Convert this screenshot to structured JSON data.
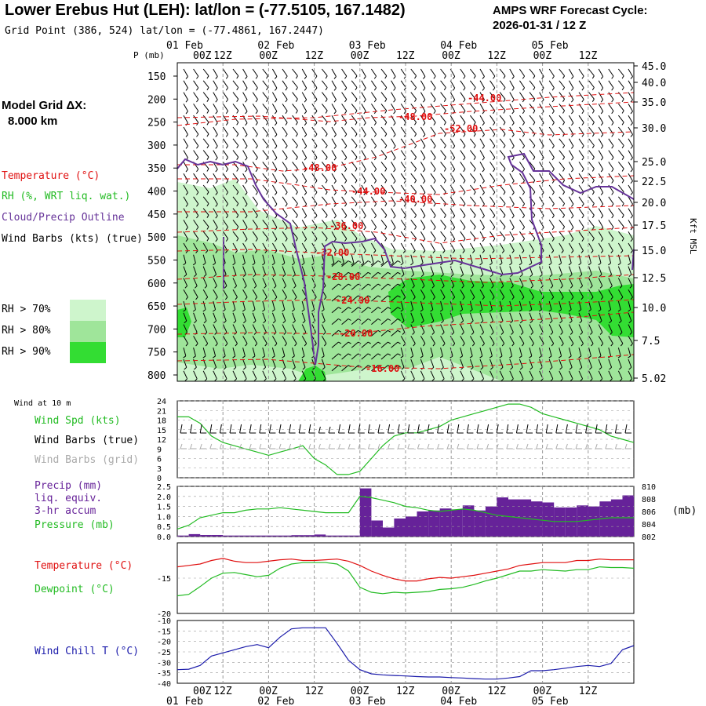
{
  "header": {
    "title": "Lower Erebus Hut (LEH):  lat/lon = (-77.5105, 167.1482)",
    "subtitle": "Grid Point (386, 524) lat/lon = (-77.4861, 167.2447)",
    "cycle_line1": "AMPS WRF Forecast Cycle:",
    "cycle_line2": "2026-01-31 / 12  Z"
  },
  "model": {
    "grid_label": "Model Grid ΔX:",
    "grid_value": "8.000 km"
  },
  "colors": {
    "temperature": "#e01010",
    "rh": "#22bb22",
    "cloud": "#663399",
    "rh70": "#cef5cc",
    "rh80": "#9fe59a",
    "rh90": "#33dd33",
    "precip": "#662299",
    "windchill": "#1a1aaa",
    "grid": "#999999"
  },
  "legend": {
    "temperature": "Temperature (°C)",
    "rh": "RH (%, WRT liq. wat.)",
    "cloud": "Cloud/Precip Outline",
    "wind": "Wind Barbs (kts) (true)",
    "rh70": "RH > 70%",
    "rh80": "RH > 80%",
    "rh90": "RH > 90%"
  },
  "time_axis": {
    "top_dates": [
      "01 Feb",
      "02 Feb",
      "03 Feb",
      "04 Feb",
      "05 Feb"
    ],
    "bottom_dates": [
      "01 Feb",
      "02 Feb",
      "03 Feb",
      "04 Feb",
      "05 Feb"
    ],
    "hour_labels": [
      "00Z",
      "12Z",
      "00Z",
      "12Z",
      "00Z",
      "12Z",
      "00Z",
      "12Z",
      "00Z",
      "12Z"
    ]
  },
  "sounding": {
    "p_axis_label": "P (mb)",
    "p_ticks": [
      "150",
      "200",
      "250",
      "300",
      "350",
      "400",
      "450",
      "500",
      "550",
      "600",
      "650",
      "700",
      "750",
      "800"
    ],
    "kft_ticks": [
      "45.0",
      "40.0",
      "35.0",
      "30.0",
      "25.0",
      "22.5",
      "20.0",
      "17.5",
      "15.0",
      "12.5",
      "10.0",
      "7.5",
      "5.02"
    ],
    "kft_label": "Kft MSL",
    "temp_contours": [
      "-44.00",
      "-48.00",
      "-52.00",
      "-48.00",
      "-44.00",
      "-40.00",
      "-36.00",
      "-32.00",
      "-28.00",
      "-24.00",
      "-20.00",
      "-16.00"
    ]
  },
  "wind_panel": {
    "header": "Wind at 10 m",
    "spd_label": "Wind Spd (kts)",
    "barb_true_label": "Wind Barbs (true)",
    "barb_grid_label": "Wind Barbs (grid)",
    "ticks": [
      "24",
      "21",
      "18",
      "15",
      "12",
      "9",
      "6",
      "3",
      "0"
    ]
  },
  "precip_panel": {
    "precip_label1": "Precip (mm)",
    "precip_label2": "liq. equiv.",
    "precip_label3": "3-hr accum",
    "pressure_label": "Pressure (mb)",
    "left_ticks": [
      "2.5",
      "2.0",
      "1.5",
      "1.0",
      "0.5",
      "0.0"
    ],
    "right_ticks": [
      "810",
      "808",
      "806",
      "804",
      "802"
    ],
    "right_unit": "(mb)"
  },
  "temp_panel": {
    "temp_label": "Temperature (°C)",
    "dew_label": "Dewpoint (°C)",
    "ticks": [
      "-15",
      "-20"
    ]
  },
  "chill_panel": {
    "label": "Wind Chill T (°C)",
    "ticks": [
      "-10",
      "-15",
      "-20",
      "-25",
      "-30",
      "-35",
      "-40"
    ]
  },
  "chart_data": [
    {
      "type": "line",
      "title": "Wind at 10 m",
      "ylabel": "Wind Spd (kts)",
      "ylim": [
        0,
        24
      ],
      "x_hours": [
        0,
        3,
        6,
        9,
        12,
        15,
        18,
        21,
        24,
        27,
        30,
        33,
        36,
        39,
        42,
        45,
        48,
        51,
        54,
        57,
        60,
        63,
        66,
        69,
        72,
        75,
        78,
        81,
        84,
        87,
        90,
        93,
        96,
        99,
        102,
        105,
        108,
        111,
        114,
        117,
        120
      ],
      "series": [
        {
          "name": "Wind Spd",
          "values": [
            19,
            19,
            17,
            13,
            11,
            10,
            9,
            8,
            7,
            8,
            9,
            10,
            6,
            4,
            1,
            1,
            2,
            6,
            10,
            13,
            14,
            14,
            15,
            16,
            18,
            19,
            20,
            21,
            22,
            23,
            23,
            22,
            20,
            19,
            18,
            17,
            16,
            15,
            13,
            12,
            11
          ]
        }
      ]
    },
    {
      "type": "bar",
      "title": "Precip 3-hr accum",
      "ylabel": "Precip (mm) liq. equiv.",
      "ylim": [
        0,
        2.5
      ],
      "x_hours": [
        0,
        3,
        6,
        9,
        12,
        15,
        18,
        21,
        24,
        27,
        30,
        33,
        36,
        39,
        42,
        45,
        48,
        51,
        54,
        57,
        60,
        63,
        66,
        69,
        72,
        75,
        78,
        81,
        84,
        87,
        90,
        93,
        96,
        99,
        102,
        105,
        108,
        111,
        114,
        117,
        120
      ],
      "values": [
        0.05,
        0.12,
        0.08,
        0.08,
        0.05,
        0.05,
        0.05,
        0.05,
        0.05,
        0.05,
        0.07,
        0.07,
        0.1,
        0.05,
        0.05,
        0.05,
        2.4,
        0.8,
        0.45,
        0.9,
        1.0,
        1.25,
        1.3,
        1.4,
        1.35,
        1.55,
        1.3,
        1.5,
        1.95,
        1.85,
        1.85,
        1.75,
        1.7,
        1.45,
        1.45,
        1.55,
        1.5,
        1.75,
        1.85,
        2.05,
        2.05
      ],
      "series2": {
        "name": "Pressure (mb)",
        "ylim": [
          802,
          810
        ],
        "values": [
          803.2,
          803.8,
          805.0,
          805.4,
          805.8,
          805.8,
          806.2,
          806.4,
          806.4,
          806.6,
          806.4,
          806.2,
          806.0,
          805.8,
          805.8,
          805.8,
          808.4,
          808.2,
          807.8,
          807.4,
          806.8,
          806.6,
          806.2,
          806.0,
          806.2,
          806.4,
          806.2,
          805.8,
          805.4,
          805.2,
          805.0,
          804.8,
          804.6,
          804.4,
          804.4,
          804.4,
          804.6,
          804.8,
          805.0,
          805.0,
          805.0
        ]
      }
    },
    {
      "type": "line",
      "title": "Temperature / Dewpoint",
      "ylabel": "°C",
      "ylim": [
        -20,
        -10
      ],
      "x_hours": [
        0,
        3,
        6,
        9,
        12,
        15,
        18,
        21,
        24,
        27,
        30,
        33,
        36,
        39,
        42,
        45,
        48,
        51,
        54,
        57,
        60,
        63,
        66,
        69,
        72,
        75,
        78,
        81,
        84,
        87,
        90,
        93,
        96,
        99,
        102,
        105,
        108,
        111,
        114,
        117,
        120
      ],
      "series": [
        {
          "name": "Temperature",
          "values": [
            -13.4,
            -13.2,
            -13.0,
            -12.5,
            -12.2,
            -12.6,
            -12.8,
            -12.8,
            -12.6,
            -12.4,
            -12.3,
            -12.5,
            -12.5,
            -12.4,
            -12.3,
            -12.6,
            -13.2,
            -14.0,
            -14.6,
            -15.1,
            -15.4,
            -15.4,
            -15.1,
            -14.9,
            -15.0,
            -14.8,
            -14.6,
            -14.3,
            -14.0,
            -13.7,
            -13.2,
            -13.0,
            -12.8,
            -12.8,
            -12.8,
            -12.5,
            -12.5,
            -12.3,
            -12.4,
            -12.4,
            -12.4
          ]
        },
        {
          "name": "Dewpoint",
          "values": [
            -17.5,
            -17.3,
            -16.2,
            -15.0,
            -14.3,
            -14.2,
            -14.5,
            -14.8,
            -14.6,
            -13.6,
            -13.0,
            -12.8,
            -12.8,
            -12.8,
            -13.0,
            -14.0,
            -16.3,
            -17.0,
            -17.2,
            -17.0,
            -17.1,
            -17.0,
            -16.9,
            -16.6,
            -16.5,
            -16.3,
            -15.9,
            -15.4,
            -15.0,
            -14.5,
            -14.0,
            -14.0,
            -13.8,
            -13.9,
            -14.0,
            -13.8,
            -13.8,
            -13.4,
            -13.5,
            -13.5,
            -13.6
          ]
        }
      ]
    },
    {
      "type": "line",
      "title": "Wind Chill",
      "ylabel": "Wind Chill T (°C)",
      "ylim": [
        -40,
        -10
      ],
      "x_hours": [
        0,
        3,
        6,
        9,
        12,
        15,
        18,
        21,
        24,
        27,
        30,
        33,
        36,
        39,
        42,
        45,
        48,
        51,
        54,
        57,
        60,
        63,
        66,
        69,
        72,
        75,
        78,
        81,
        84,
        87,
        90,
        93,
        96,
        99,
        102,
        105,
        108,
        111,
        114,
        117,
        120
      ],
      "series": [
        {
          "name": "Wind Chill",
          "values": [
            -33.5,
            -33.3,
            -31.5,
            -27,
            -25.5,
            -24,
            -22.5,
            -21.5,
            -23,
            -18,
            -14,
            -13.5,
            -13.5,
            -13.5,
            -21,
            -29,
            -33.5,
            -35.5,
            -36,
            -36.3,
            -36.5,
            -36.8,
            -37,
            -37,
            -37.3,
            -37.5,
            -37.8,
            -38,
            -38,
            -37.5,
            -36.8,
            -34,
            -34,
            -33.5,
            -32.8,
            -32,
            -31.5,
            -32,
            -30.5,
            -24,
            -22
          ]
        }
      ]
    }
  ]
}
